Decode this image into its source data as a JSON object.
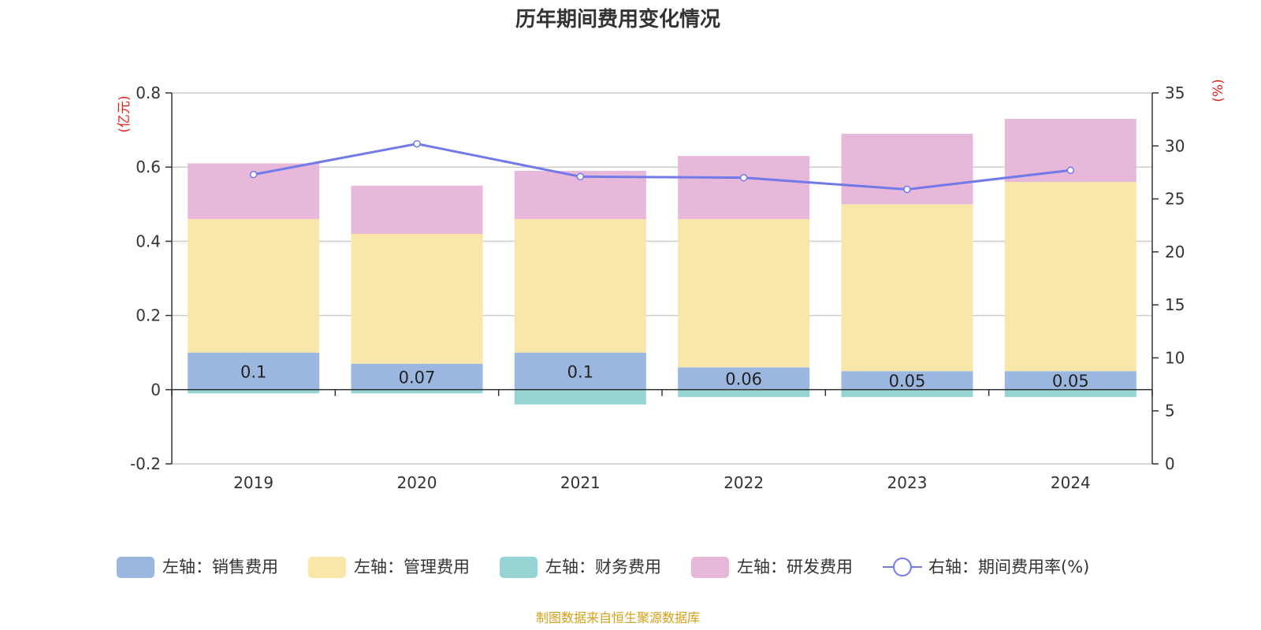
{
  "chart_data": {
    "type": "bar",
    "title": "历年期间费用变化情况",
    "categories": [
      "2019",
      "2020",
      "2021",
      "2022",
      "2023",
      "2024"
    ],
    "left_axis": {
      "unit": "(亿元)",
      "ylim": [
        -0.2,
        0.8
      ],
      "ticks": [
        "-0.2",
        "0",
        "0.2",
        "0.4",
        "0.6",
        "0.8"
      ]
    },
    "right_axis": {
      "unit": "(%)",
      "ylim": [
        0,
        35
      ],
      "ticks": [
        "0",
        "5",
        "10",
        "15",
        "20",
        "25",
        "30",
        "35"
      ]
    },
    "series": [
      {
        "name": "左轴：销售费用",
        "axis": "left",
        "color": "#9bb7e0",
        "values": [
          0.1,
          0.07,
          0.1,
          0.06,
          0.05,
          0.05
        ],
        "labels": [
          "0.1",
          "0.07",
          "0.1",
          "0.06",
          "0.05",
          "0.05"
        ]
      },
      {
        "name": "左轴：管理费用",
        "axis": "left",
        "color": "#f8e7a8",
        "values": [
          0.36,
          0.35,
          0.36,
          0.4,
          0.45,
          0.51
        ]
      },
      {
        "name": "左轴：财务费用",
        "axis": "left",
        "color": "#96d4d4",
        "values": [
          -0.01,
          -0.01,
          -0.04,
          -0.02,
          -0.02,
          -0.02
        ]
      },
      {
        "name": "左轴：研发费用",
        "axis": "left",
        "color": "#e8b8da",
        "values": [
          0.15,
          0.13,
          0.13,
          0.17,
          0.19,
          0.17
        ]
      },
      {
        "name": "右轴：期间费用率(%)",
        "axis": "right",
        "type": "line",
        "color": "#7279e8",
        "values": [
          27.3,
          30.2,
          27.1,
          27.0,
          25.9,
          27.7
        ]
      }
    ],
    "grid": true,
    "legend": "bottom",
    "source": "制图数据来自恒生聚源数据库"
  }
}
